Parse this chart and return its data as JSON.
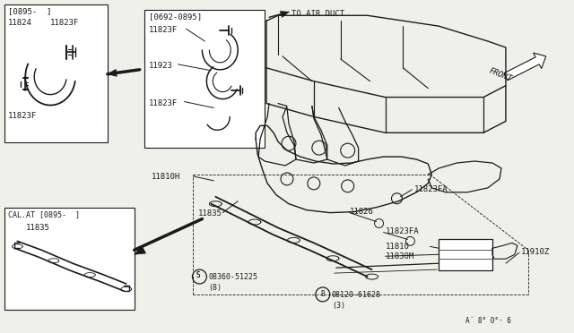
{
  "bg_color": "#f0f0eb",
  "line_color": "#1a1a1a",
  "box_color": "white",
  "figsize": [
    6.4,
    3.72
  ],
  "dpi": 100,
  "labels": {
    "top_left_header": "[0895-  ]",
    "part_11824": "11824",
    "part_11823F_tl1": "11823F",
    "part_11823F_tl2": "11823F",
    "mid_box_header": "[0692-0895]",
    "part_11823F_mb": "11823F",
    "part_11923": "11923",
    "part_11823F_mb2": "11823F",
    "to_air_duct": "TO AIR DUCT",
    "front": "FRONT",
    "part_11810H": "11810H",
    "part_11823FA_1": "11823FA",
    "part_11835": "11835",
    "part_11826": "11826",
    "part_11823FA_2": "11823FA",
    "part_11810": "11810",
    "part_11830M": "11830M",
    "part_11910Z": "11910Z",
    "cal_header": "CAL.AT [0895-  ]",
    "cal_11835": "11835",
    "s_bolt": "08360-51225",
    "s_bolt_qty": "(8)",
    "b_bolt": "08120-61628",
    "b_bolt_qty": "(3)",
    "drw_num": "A´ 8° 0°· 6"
  }
}
